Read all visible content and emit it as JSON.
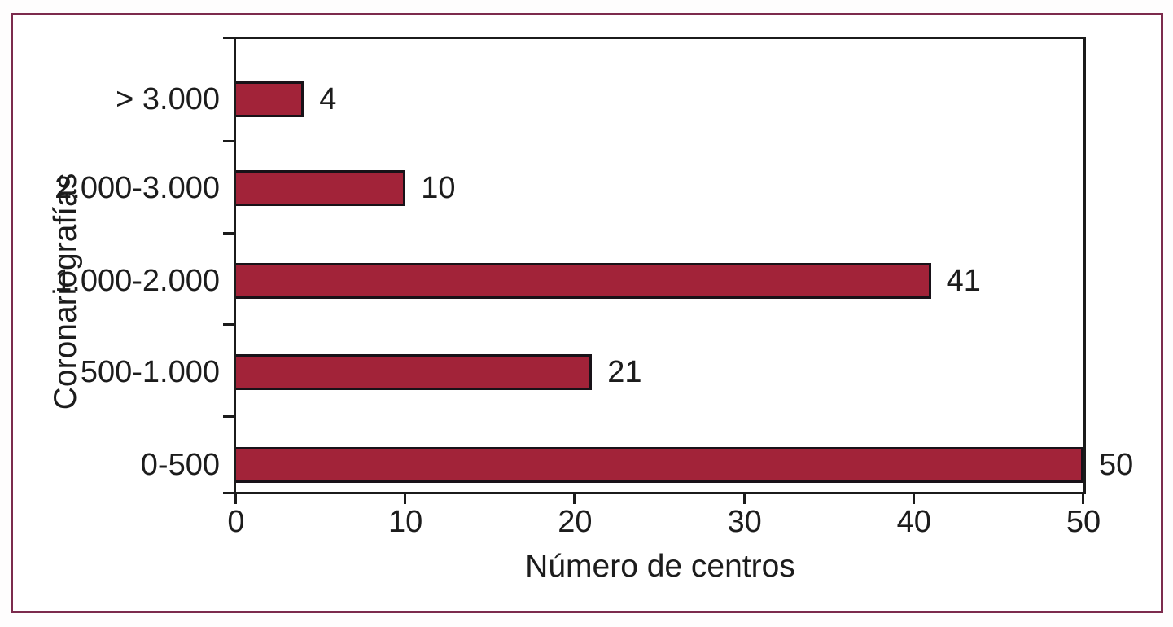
{
  "figure": {
    "frame_border_color": "#7c2b4d",
    "background_color": "#ffffff"
  },
  "chart_data": {
    "type": "bar",
    "orientation": "horizontal",
    "categories": [
      "> 3.000",
      "2.000-3.000",
      "1.000-2.000",
      "500-1.000",
      "0-500"
    ],
    "values": [
      4,
      10,
      41,
      21,
      50
    ],
    "value_labels": [
      "4",
      "10",
      "41",
      "21",
      "50"
    ],
    "xlabel": "Número de centros",
    "ylabel": "Coronariografías",
    "xlim": [
      0,
      50
    ],
    "xticks": [
      0,
      10,
      20,
      30,
      40,
      50
    ],
    "xtick_labels": [
      "0",
      "10",
      "20",
      "30",
      "40",
      "50"
    ],
    "grid": false,
    "legend": false,
    "bar_color": "#a22339",
    "bar_border_color": "#181218",
    "axis_color": "#1b1b1b",
    "text_color": "#1c1c1c"
  }
}
